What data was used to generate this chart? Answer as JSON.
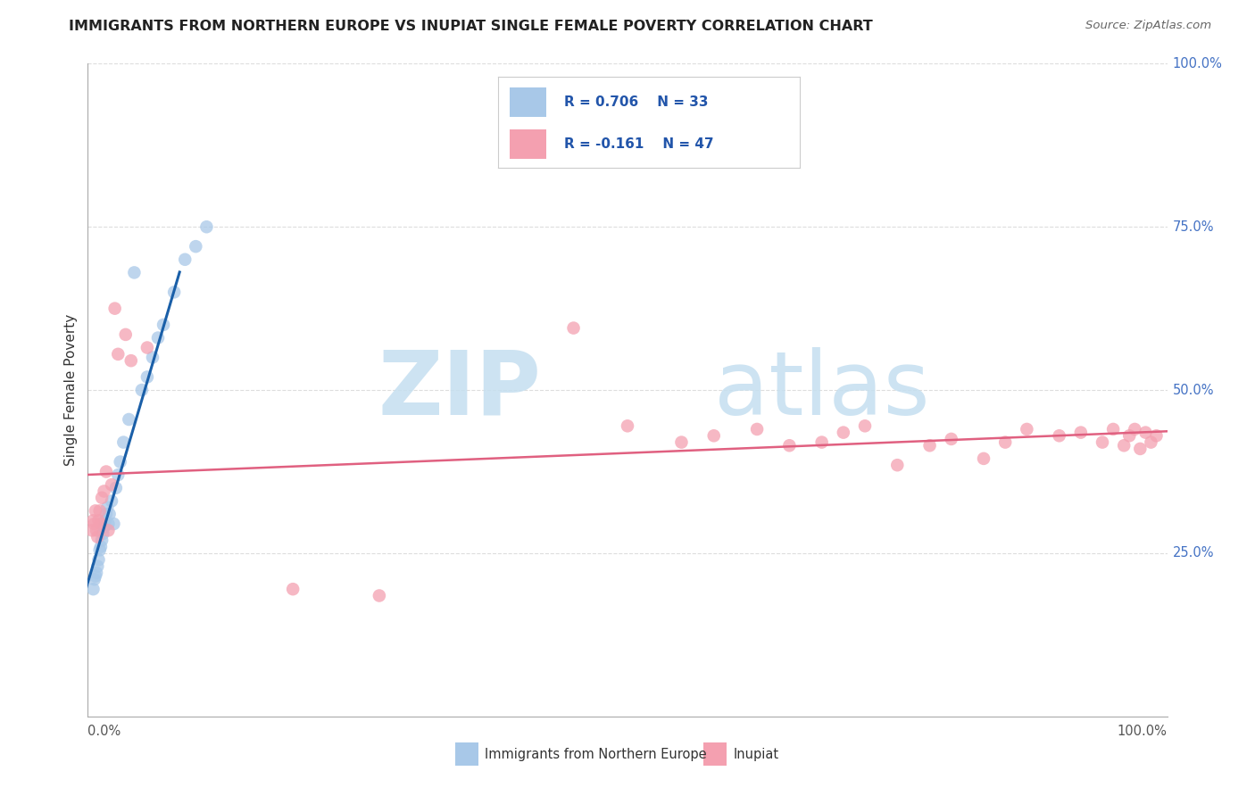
{
  "title": "IMMIGRANTS FROM NORTHERN EUROPE VS INUPIAT SINGLE FEMALE POVERTY CORRELATION CHART",
  "source": "Source: ZipAtlas.com",
  "ylabel": "Single Female Poverty",
  "legend_label1": "Immigrants from Northern Europe",
  "legend_label2": "Inupiat",
  "r1": 0.706,
  "n1": 33,
  "r2": -0.161,
  "n2": 47,
  "blue_color": "#a8c8e8",
  "pink_color": "#f4a0b0",
  "blue_line_color": "#1a5fa8",
  "pink_line_color": "#e06080",
  "watermark_zip": "ZIP",
  "watermark_atlas": "atlas",
  "background_color": "#ffffff",
  "grid_color": "#dddddd",
  "blue_x": [
    0.005,
    0.006,
    0.007,
    0.008,
    0.009,
    0.01,
    0.011,
    0.012,
    0.013,
    0.014,
    0.015,
    0.016,
    0.017,
    0.018,
    0.019,
    0.02,
    0.022,
    0.024,
    0.026,
    0.028,
    0.03,
    0.033,
    0.038,
    0.043,
    0.05,
    0.055,
    0.06,
    0.065,
    0.07,
    0.08,
    0.09,
    0.1,
    0.11
  ],
  "blue_y": [
    0.195,
    0.21,
    0.215,
    0.22,
    0.23,
    0.24,
    0.255,
    0.26,
    0.27,
    0.28,
    0.29,
    0.3,
    0.31,
    0.32,
    0.295,
    0.31,
    0.33,
    0.295,
    0.35,
    0.37,
    0.39,
    0.42,
    0.455,
    0.68,
    0.5,
    0.52,
    0.55,
    0.58,
    0.6,
    0.65,
    0.7,
    0.72,
    0.75
  ],
  "pink_x": [
    0.004,
    0.005,
    0.006,
    0.007,
    0.008,
    0.009,
    0.01,
    0.011,
    0.012,
    0.013,
    0.015,
    0.017,
    0.019,
    0.022,
    0.025,
    0.028,
    0.035,
    0.04,
    0.055,
    0.19,
    0.27,
    0.45,
    0.5,
    0.55,
    0.58,
    0.62,
    0.65,
    0.68,
    0.7,
    0.72,
    0.75,
    0.78,
    0.8,
    0.83,
    0.85,
    0.87,
    0.9,
    0.92,
    0.94,
    0.95,
    0.96,
    0.965,
    0.97,
    0.975,
    0.98,
    0.985,
    0.99
  ],
  "pink_y": [
    0.285,
    0.3,
    0.295,
    0.315,
    0.285,
    0.275,
    0.3,
    0.315,
    0.295,
    0.335,
    0.345,
    0.375,
    0.285,
    0.355,
    0.625,
    0.555,
    0.585,
    0.545,
    0.565,
    0.195,
    0.185,
    0.595,
    0.445,
    0.42,
    0.43,
    0.44,
    0.415,
    0.42,
    0.435,
    0.445,
    0.385,
    0.415,
    0.425,
    0.395,
    0.42,
    0.44,
    0.43,
    0.435,
    0.42,
    0.44,
    0.415,
    0.43,
    0.44,
    0.41,
    0.435,
    0.42,
    0.43
  ]
}
